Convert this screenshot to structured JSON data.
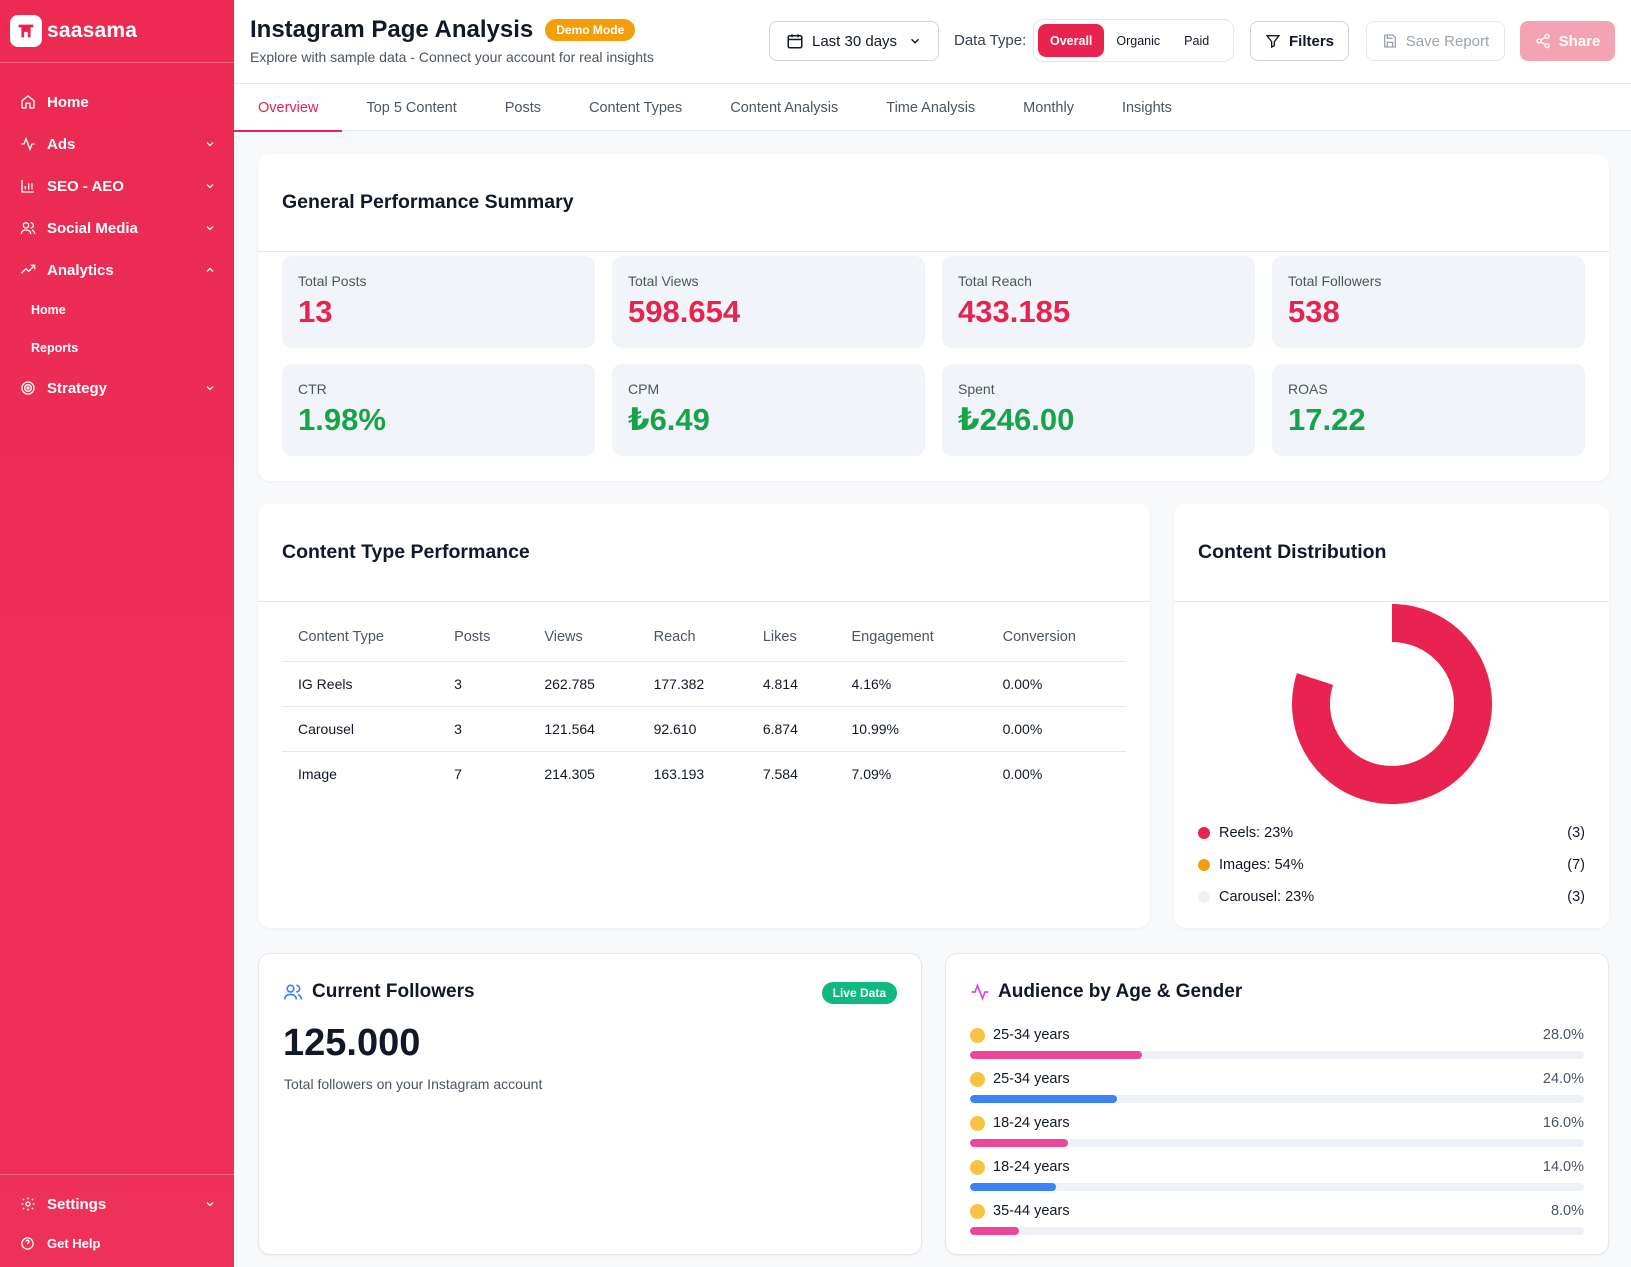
{
  "app": {
    "logo_text": "saasama"
  },
  "sidebar": {
    "items": [
      {
        "label": "Home",
        "icon": "home-icon"
      },
      {
        "label": "Ads",
        "icon": "activity-icon"
      },
      {
        "label": "SEO - AEO",
        "icon": "bar-chart-icon"
      },
      {
        "label": "Social Media",
        "icon": "users-icon"
      },
      {
        "label": "Analytics",
        "icon": "trending-up-icon"
      },
      {
        "label": "Strategy",
        "icon": "target-icon"
      }
    ],
    "analytics_sub": [
      {
        "label": "Home"
      },
      {
        "label": "Reports"
      }
    ],
    "settings_label": "Settings",
    "help_label": "Get Help"
  },
  "header": {
    "title": "Instagram Page Analysis",
    "badge": "Demo Mode",
    "subtitle": "Explore with sample data - Connect your account for real insights",
    "date_range": "Last 30 days",
    "data_type_label": "Data Type:",
    "data_types": [
      "Overall",
      "Organic",
      "Paid"
    ],
    "data_type_selected": "Overall",
    "filters_label": "Filters",
    "save_label": "Save Report",
    "share_label": "Share"
  },
  "tabs": [
    "Overview",
    "Top 5 Content",
    "Posts",
    "Content Types",
    "Content Analysis",
    "Time Analysis",
    "Monthly",
    "Insights"
  ],
  "tab_active": "Overview",
  "summary": {
    "title": "General Performance Summary",
    "metrics": [
      {
        "label": "Total Posts",
        "value": "13",
        "color": "#e8234f"
      },
      {
        "label": "Total Views",
        "value": "598.654",
        "color": "#e8234f"
      },
      {
        "label": "Total Reach",
        "value": "433.185",
        "color": "#e8234f"
      },
      {
        "label": "Total Followers",
        "value": "538",
        "color": "#e8234f"
      },
      {
        "label": "CTR",
        "value": "1.98%",
        "color": "#16a34a"
      },
      {
        "label": "CPM",
        "value": "₺6.49",
        "color": "#16a34a"
      },
      {
        "label": "Spent",
        "value": "₺246.00",
        "color": "#16a34a"
      },
      {
        "label": "ROAS",
        "value": "17.22",
        "color": "#16a34a"
      }
    ]
  },
  "content_type": {
    "title": "Content Type Performance",
    "columns": [
      "Content Type",
      "Posts",
      "Views",
      "Reach",
      "Likes",
      "Engagement",
      "Conversion"
    ],
    "rows": [
      [
        "IG Reels",
        "3",
        "262.785",
        "177.382",
        "4.814",
        "4.16%",
        "0.00%"
      ],
      [
        "Carousel",
        "3",
        "121.564",
        "92.610",
        "6.874",
        "10.99%",
        "0.00%"
      ],
      [
        "Image",
        "7",
        "214.305",
        "163.193",
        "7.584",
        "7.09%",
        "0.00%"
      ]
    ]
  },
  "distribution": {
    "title": "Content Distribution",
    "items": [
      {
        "label": "Reels: 23%",
        "count": "(3)",
        "color": "#e8234f"
      },
      {
        "label": "Images: 54%",
        "count": "(7)",
        "color": "#f59e0b"
      },
      {
        "label": "Carousel: 23%",
        "count": "(3)",
        "color": "#eef1f6"
      }
    ],
    "visible_arc_fraction": 0.8
  },
  "followers": {
    "title": "Current Followers",
    "badge": "Live Data",
    "value": "125.000",
    "subtitle": "Total followers on your Instagram account"
  },
  "audience": {
    "title": "Audience by Age & Gender",
    "rows": [
      {
        "label": "25-34 years",
        "pct": "28.0%",
        "value": 28.0,
        "color": "#ec4899"
      },
      {
        "label": "25-34 years",
        "pct": "24.0%",
        "value": 24.0,
        "color": "#3b82f6"
      },
      {
        "label": "18-24 years",
        "pct": "16.0%",
        "value": 16.0,
        "color": "#ec4899"
      },
      {
        "label": "18-24 years",
        "pct": "14.0%",
        "value": 14.0,
        "color": "#3b82f6"
      },
      {
        "label": "35-44 years",
        "pct": "8.0%",
        "value": 8.0,
        "color": "#ec4899"
      }
    ]
  }
}
